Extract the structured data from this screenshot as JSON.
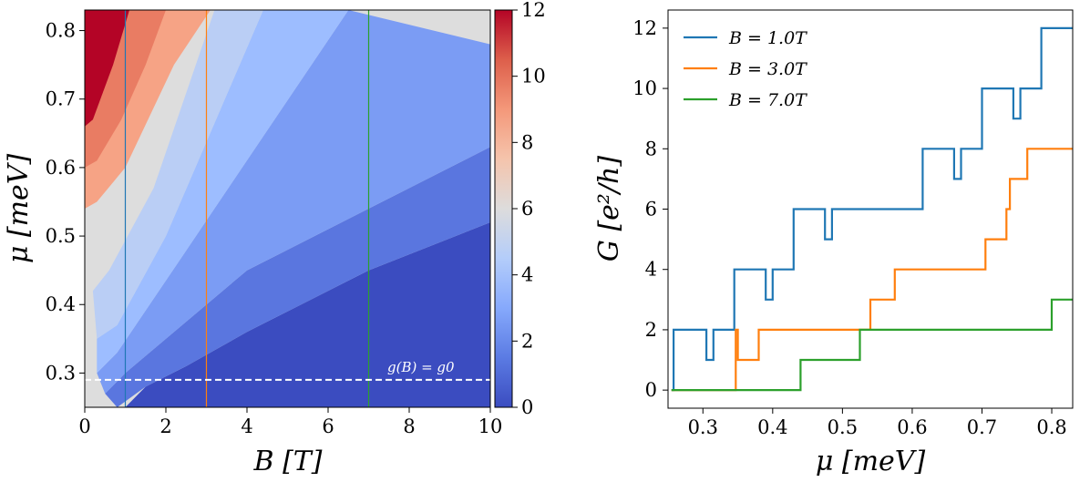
{
  "chart_data": [
    {
      "type": "heatmap",
      "title": "",
      "xlabel": "B [T]",
      "ylabel": "μ [meV]",
      "xlim": [
        0,
        10
      ],
      "ylim": [
        0.25,
        0.83
      ],
      "xticks": [
        "0",
        "2",
        "4",
        "6",
        "8",
        "10"
      ],
      "yticks": [
        "0.3",
        "0.4",
        "0.5",
        "0.6",
        "0.7",
        "0.8"
      ],
      "colorbar": {
        "range": [
          0,
          12
        ],
        "ticks": [
          "0",
          "2",
          "4",
          "6",
          "8",
          "10",
          "12"
        ],
        "colormap": "coolwarm",
        "colors": [
          "#3b4cc0",
          "#6a8bef",
          "#9dbdff",
          "#c9d7f0",
          "#dddddd",
          "#f2cbb7",
          "#f6a385",
          "#e26952",
          "#b40426"
        ]
      },
      "annotation": "g(B) = g0",
      "reference_line": {
        "mu": 0.29,
        "style": "dashed",
        "color": "#ffffff"
      },
      "vertical_lines": [
        {
          "B": 1.0,
          "color": "#1f77b4"
        },
        {
          "B": 3.0,
          "color": "#ff7f0e"
        },
        {
          "B": 7.0,
          "color": "#2ca02c"
        }
      ],
      "regions": [
        {
          "value": 0,
          "points": [
            [
              1,
              0.25
            ],
            [
              10,
              0.25
            ],
            [
              10,
              0.52
            ],
            [
              7,
              0.45
            ],
            [
              4,
              0.36
            ],
            [
              2.5,
              0.31
            ],
            [
              1.5,
              0.28
            ]
          ]
        },
        {
          "value": 1,
          "points": [
            [
              0.8,
              0.25
            ],
            [
              1.5,
              0.28
            ],
            [
              2.5,
              0.31
            ],
            [
              4,
              0.36
            ],
            [
              7,
              0.45
            ],
            [
              10,
              0.52
            ],
            [
              10,
              0.63
            ],
            [
              4,
              0.45
            ],
            [
              1,
              0.3
            ],
            [
              0.5,
              0.27
            ]
          ]
        },
        {
          "value": 2,
          "points": [
            [
              0.5,
              0.27
            ],
            [
              1,
              0.3
            ],
            [
              4,
              0.45
            ],
            [
              10,
              0.63
            ],
            [
              10,
              0.78
            ],
            [
              6.5,
              0.83
            ],
            [
              2.4,
              0.47
            ],
            [
              0.8,
              0.33
            ],
            [
              0.3,
              0.3
            ]
          ]
        },
        {
          "value": 3,
          "points": [
            [
              0.3,
              0.3
            ],
            [
              0.8,
              0.33
            ],
            [
              2.4,
              0.47
            ],
            [
              6.5,
              0.83
            ],
            [
              4.4,
              0.83
            ],
            [
              2,
              0.5
            ],
            [
              0.8,
              0.37
            ],
            [
              0.3,
              0.35
            ]
          ]
        },
        {
          "value": 4,
          "points": [
            [
              0.3,
              0.35
            ],
            [
              0.8,
              0.37
            ],
            [
              2,
              0.5
            ],
            [
              4.4,
              0.83
            ],
            [
              3.2,
              0.83
            ],
            [
              1.7,
              0.57
            ],
            [
              0.6,
              0.45
            ],
            [
              0.2,
              0.42
            ]
          ]
        },
        {
          "value": 9,
          "points": [
            [
              0,
              0.54
            ],
            [
              0.3,
              0.55
            ],
            [
              1,
              0.6
            ],
            [
              2.2,
              0.75
            ],
            [
              3.1,
              0.83
            ],
            [
              0,
              0.83
            ]
          ]
        },
        {
          "value": 10,
          "points": [
            [
              0,
              0.6
            ],
            [
              0.3,
              0.61
            ],
            [
              0.9,
              0.67
            ],
            [
              1.5,
              0.75
            ],
            [
              2,
              0.83
            ],
            [
              0,
              0.83
            ]
          ]
        },
        {
          "value": 12,
          "points": [
            [
              0,
              0.66
            ],
            [
              0.2,
              0.67
            ],
            [
              0.7,
              0.75
            ],
            [
              1.1,
              0.83
            ],
            [
              0,
              0.83
            ]
          ]
        }
      ],
      "default_value": 6
    },
    {
      "type": "line",
      "title": "",
      "xlabel": "μ [meV]",
      "ylabel": "G [e²/h]",
      "xlim": [
        0.25,
        0.83
      ],
      "ylim": [
        -0.6,
        12.6
      ],
      "xticks": [
        "0.3",
        "0.4",
        "0.5",
        "0.6",
        "0.7",
        "0.8"
      ],
      "yticks": [
        "0",
        "2",
        "4",
        "6",
        "8",
        "10",
        "12"
      ],
      "legend_position": "top-left",
      "series": [
        {
          "name": "B = 1.0T",
          "color": "#1f77b4",
          "x": [
            0.255,
            0.258,
            0.305,
            0.315,
            0.325,
            0.345,
            0.39,
            0.4,
            0.41,
            0.43,
            0.475,
            0.485,
            0.5,
            0.615,
            0.66,
            0.67,
            0.7,
            0.745,
            0.755,
            0.765,
            0.785,
            0.83
          ],
          "values": [
            0,
            2,
            1,
            2,
            2,
            4,
            3,
            4,
            4,
            6,
            5,
            6,
            6,
            8,
            7,
            8,
            10,
            9,
            10,
            10,
            12,
            12
          ]
        },
        {
          "name": "B = 3.0T",
          "color": "#ff7f0e",
          "x": [
            0.255,
            0.345,
            0.347,
            0.35,
            0.38,
            0.45,
            0.54,
            0.575,
            0.64,
            0.705,
            0.735,
            0.74,
            0.765,
            0.83
          ],
          "values": [
            0,
            0,
            2,
            1,
            2,
            2,
            3,
            4,
            4,
            5,
            6,
            7,
            8,
            8
          ]
        },
        {
          "name": "B = 7.0T",
          "color": "#2ca02c",
          "x": [
            0.255,
            0.44,
            0.525,
            0.6,
            0.8,
            0.83
          ],
          "values": [
            0,
            1,
            2,
            2,
            3,
            3
          ]
        }
      ]
    }
  ]
}
